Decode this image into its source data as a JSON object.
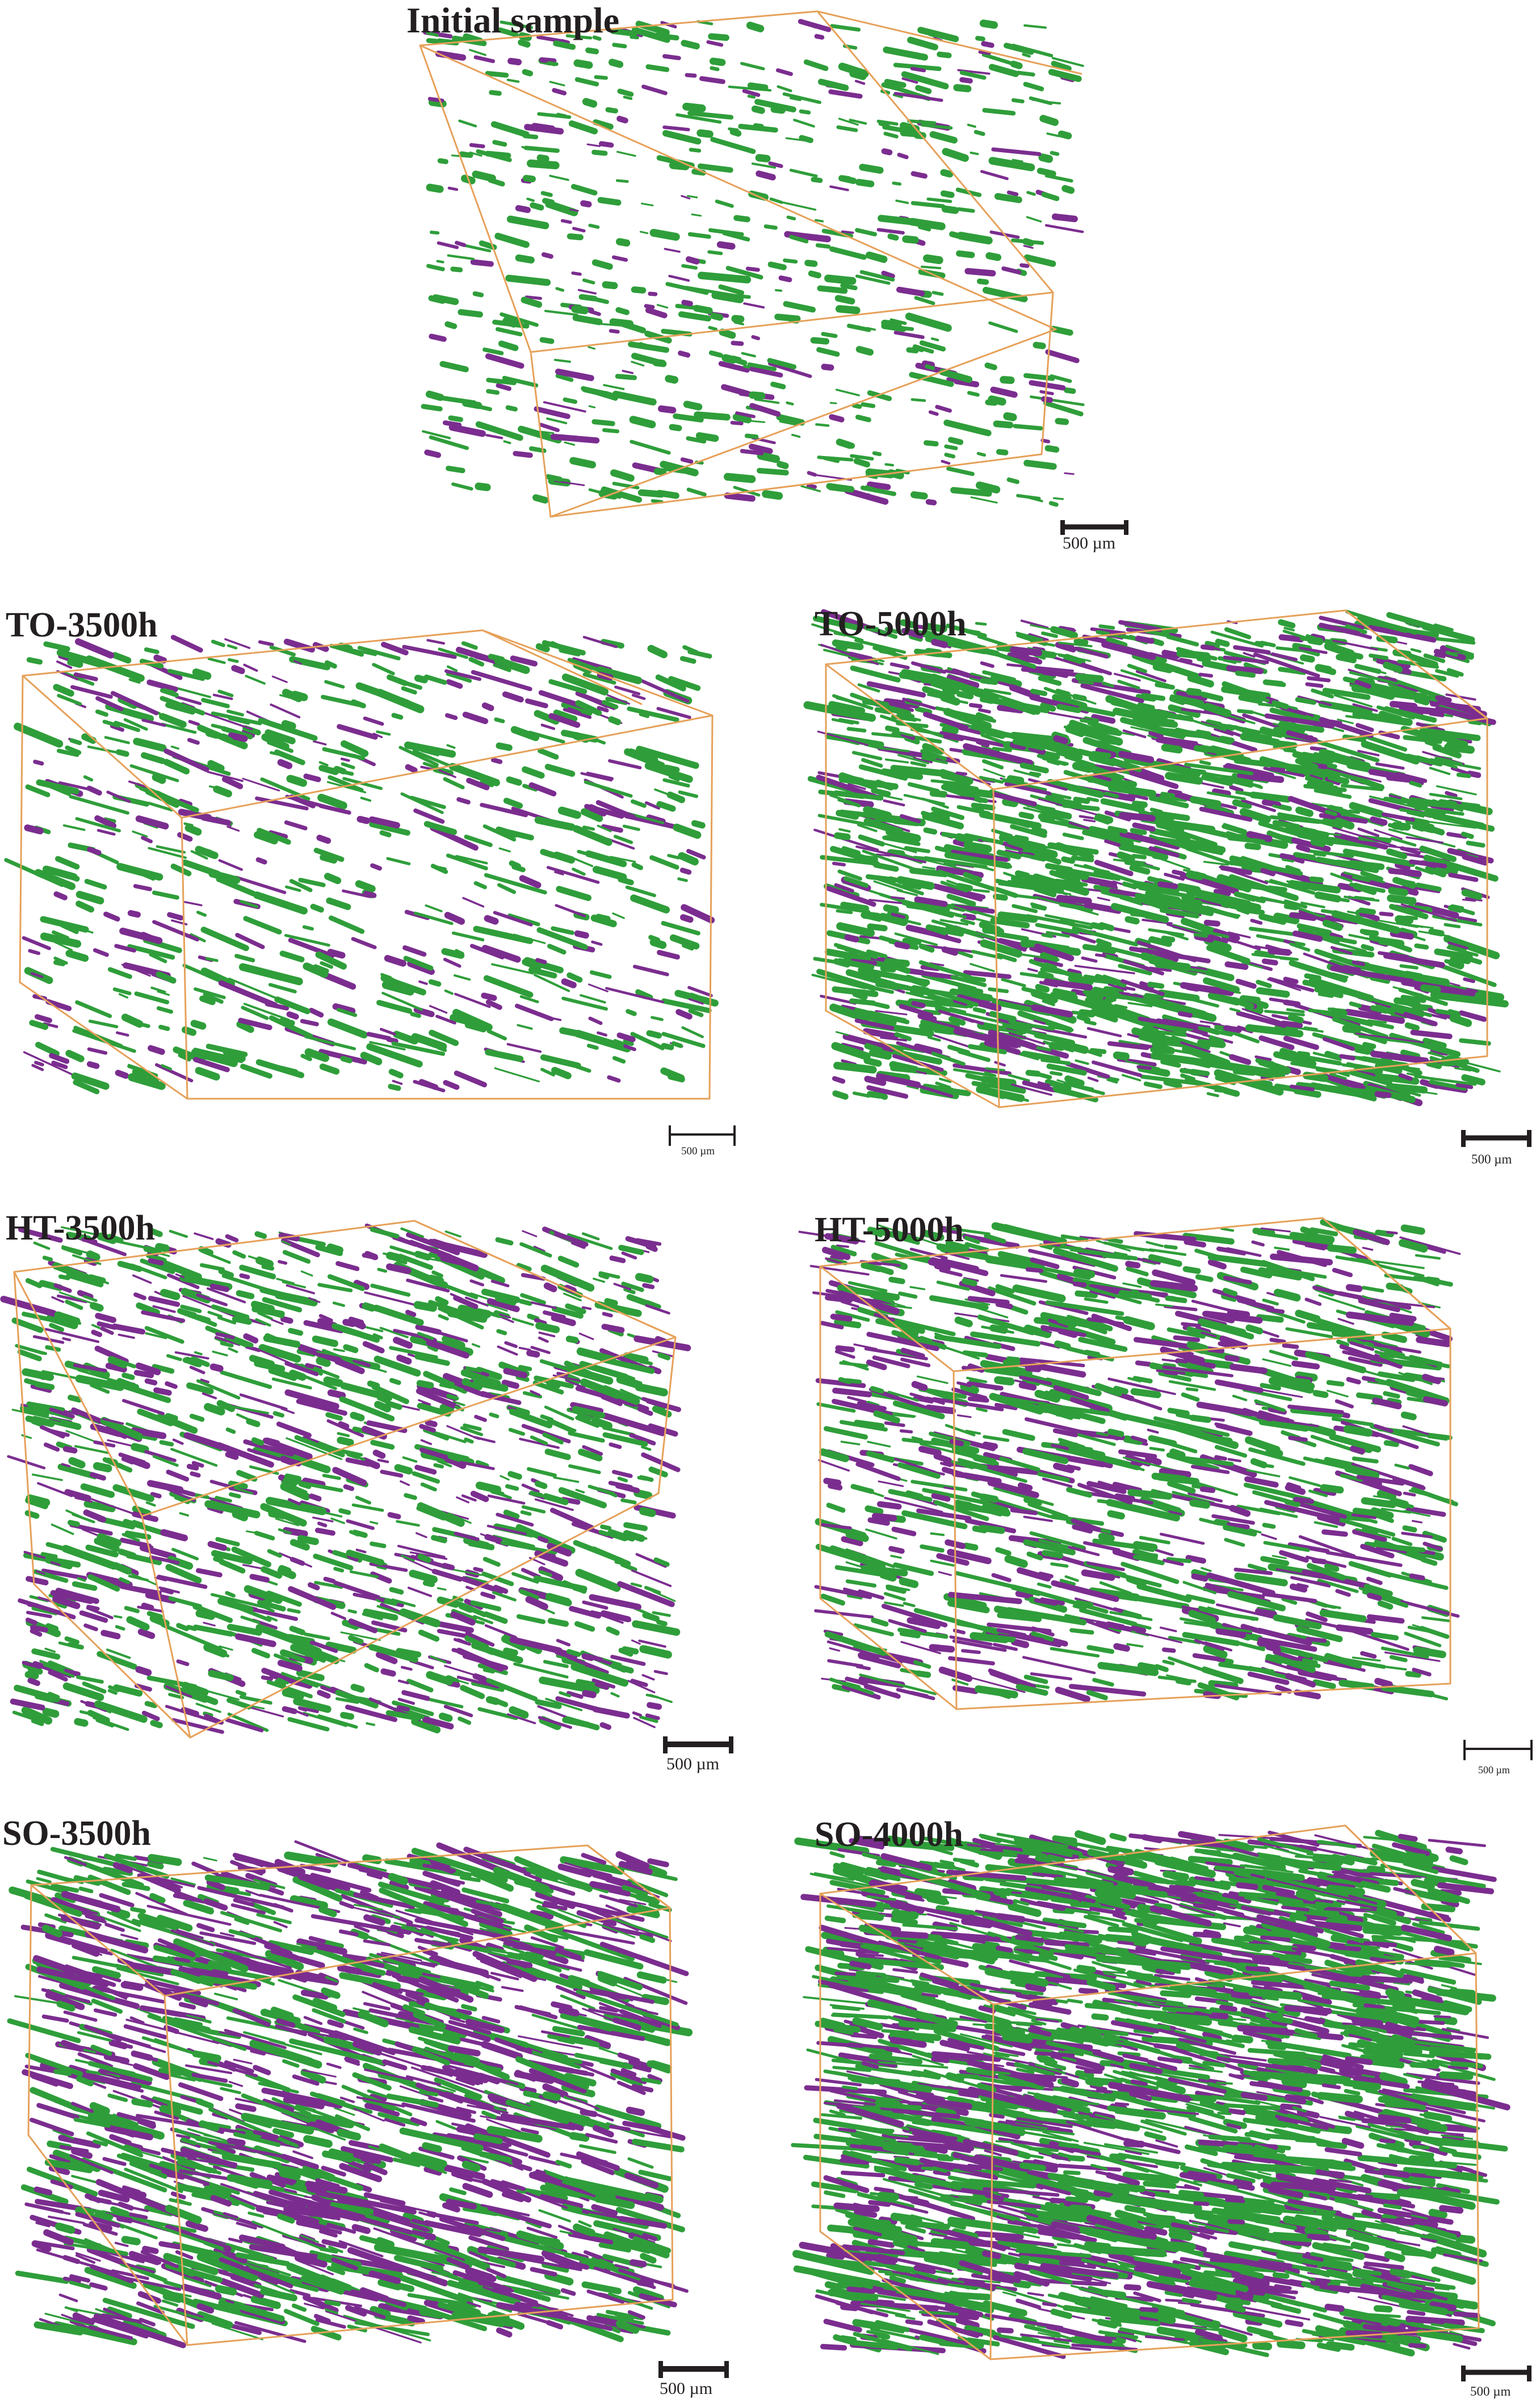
{
  "figure": {
    "panels": [
      {
        "id": "initial",
        "title": "Initial sample",
        "scale_label": "500 µm"
      },
      {
        "id": "to3500",
        "title": "TO-3500h",
        "scale_label": "500 µm"
      },
      {
        "id": "to5000",
        "title": "TO-5000h",
        "scale_label": "500 µm"
      },
      {
        "id": "ht3500",
        "title": "HT-3500h",
        "scale_label": "500 µm"
      },
      {
        "id": "ht5000",
        "title": "HT-5000h",
        "scale_label": "500 µm"
      },
      {
        "id": "so3500",
        "title": "SO-3500h",
        "scale_label": "500 µm"
      },
      {
        "id": "so4000",
        "title": "SO-4000h",
        "scale_label": "500 µm"
      }
    ],
    "colors": {
      "box_edge": "#e6a15a",
      "phase_green": "#2f9e3a",
      "phase_purple": "#7b2d8f",
      "text": "#231f20"
    }
  }
}
